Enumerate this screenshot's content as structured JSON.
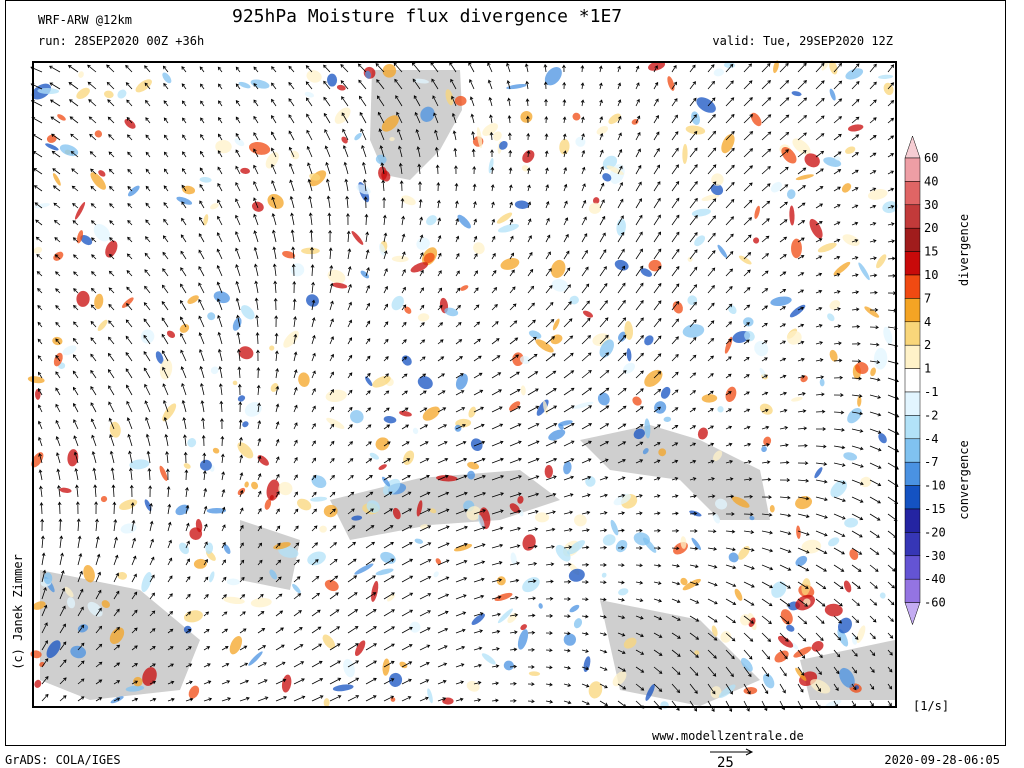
{
  "header": {
    "model": "WRF-ARW @12km",
    "title": "925hPa Moisture flux divergence *1E7",
    "run": "run: 28SEP2020 00Z +36h",
    "valid": "valid: Tue, 29SEP2020 12Z"
  },
  "colorbar": {
    "levels": [
      60,
      40,
      30,
      20,
      15,
      10,
      7,
      4,
      2,
      1,
      -1,
      -2,
      -4,
      -7,
      -10,
      -15,
      -20,
      -30,
      -40,
      -60
    ],
    "colors": [
      "#f6cdd3",
      "#ee9ea5",
      "#e06565",
      "#c23a3a",
      "#a01c1c",
      "#c80a0a",
      "#f04a12",
      "#f4a424",
      "#f9d67a",
      "#fff2c8",
      "#ffffff",
      "#e2f5ff",
      "#b2e2f8",
      "#80c2f0",
      "#4a92e2",
      "#1452c2",
      "#2424a2",
      "#3636b6",
      "#6454d4",
      "#9474e2",
      "#c4acf2"
    ],
    "label_top": "divergence",
    "label_bottom": "convergence",
    "units": "[1/s]"
  },
  "footer": {
    "credit": "(c) Janek Zimmer",
    "url": "www.modellzentrale.de",
    "vector_scale": 25,
    "software": "GrADS: COLA/IGES",
    "timestamp": "2020-09-28-06:05"
  }
}
